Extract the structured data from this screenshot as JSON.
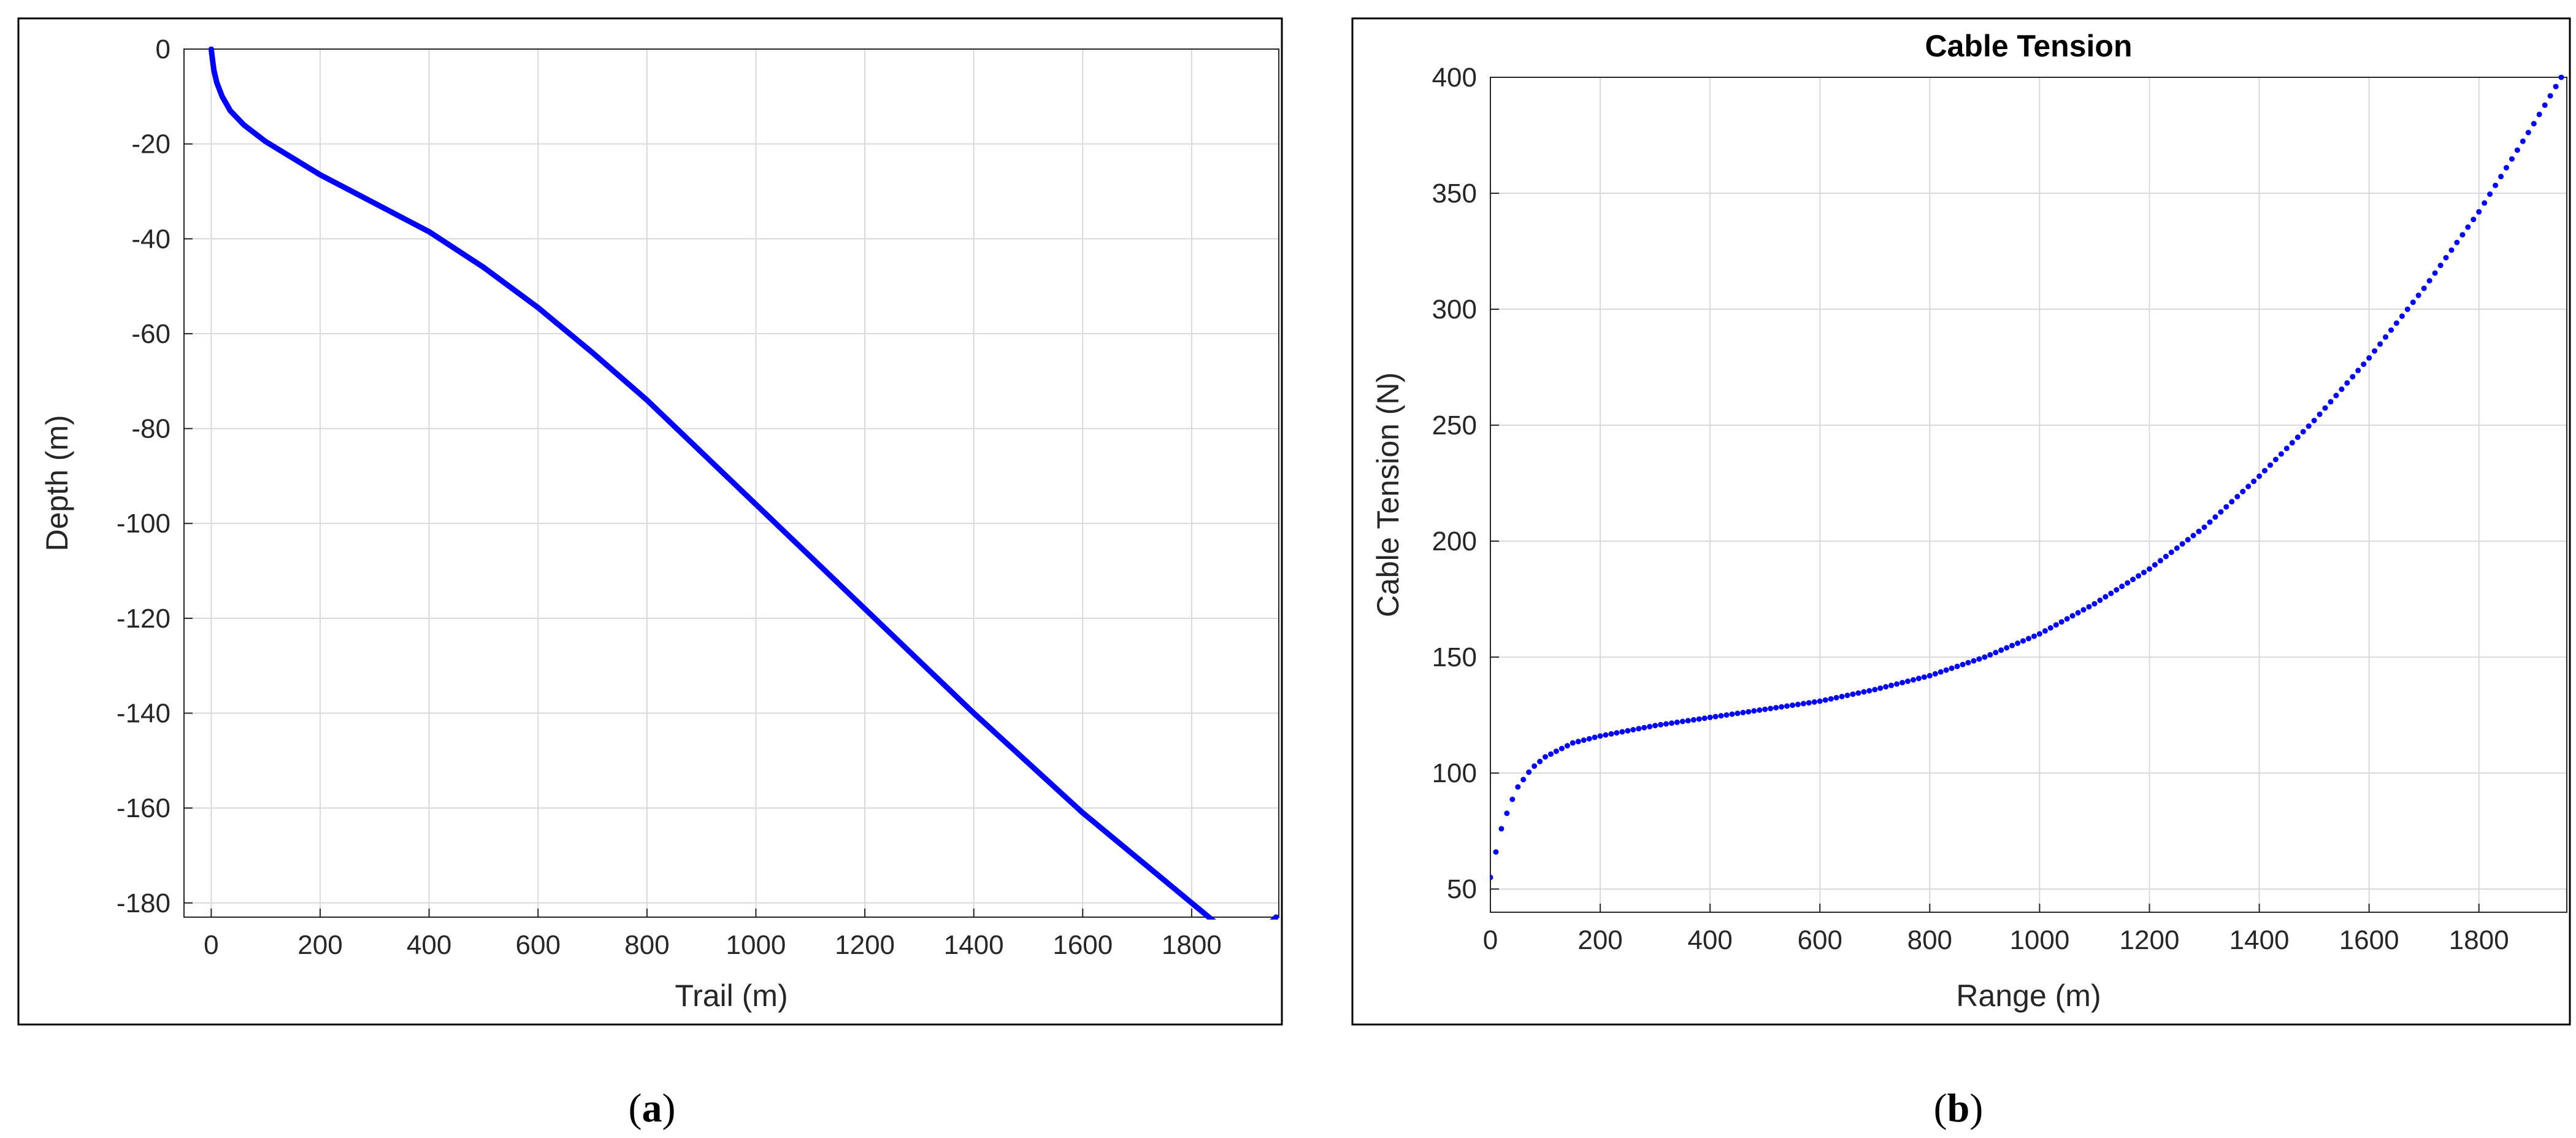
{
  "chart_data": [
    {
      "type": "line",
      "title": "",
      "xlabel": "Trail (m)",
      "ylabel": "Depth (m)",
      "xlim": [
        -50,
        1960
      ],
      "ylim": [
        -183,
        0
      ],
      "xticks": [
        0,
        200,
        400,
        600,
        800,
        1000,
        1200,
        1400,
        1600,
        1800
      ],
      "yticks": [
        0,
        -20,
        -40,
        -60,
        -80,
        -100,
        -120,
        -140,
        -160,
        -180
      ],
      "grid": true,
      "color": "#0000ff",
      "caption_letter": "a",
      "x": [
        0,
        2,
        5,
        10,
        20,
        35,
        60,
        100,
        150,
        200,
        300,
        400,
        500,
        600,
        700,
        800,
        900,
        1000,
        1100,
        1200,
        1300,
        1400,
        1500,
        1600,
        1700,
        1800,
        1900,
        1955
      ],
      "y": [
        0,
        -2,
        -4.5,
        -7,
        -10,
        -13,
        -16,
        -19.5,
        -23,
        -26.5,
        -32.5,
        -38.5,
        -46,
        -54.5,
        -64,
        -74,
        -85,
        -96,
        -107,
        -118,
        -129,
        -140,
        -150.5,
        -161,
        -170.5,
        -180,
        -189.5,
        -183
      ]
    },
    {
      "type": "scatter",
      "title": "Cable Tension",
      "xlabel": "Range (m)",
      "ylabel": "Cable Tension (N)",
      "xlim": [
        0,
        1960
      ],
      "ylim": [
        40,
        400
      ],
      "xticks": [
        0,
        200,
        400,
        600,
        800,
        1000,
        1200,
        1400,
        1600,
        1800
      ],
      "yticks": [
        50,
        100,
        150,
        200,
        250,
        300,
        350,
        400
      ],
      "grid": true,
      "color": "#0000ff",
      "caption_letter": "b",
      "x": [
        0,
        10,
        20,
        35,
        50,
        75,
        100,
        150,
        200,
        300,
        400,
        500,
        600,
        700,
        800,
        900,
        1000,
        1100,
        1200,
        1300,
        1400,
        1500,
        1600,
        1700,
        1800,
        1900,
        1950
      ],
      "y": [
        55,
        66,
        76,
        86,
        94,
        102,
        107,
        113,
        116,
        120.5,
        124,
        127.5,
        131,
        136,
        142,
        150,
        160,
        173,
        188,
        206,
        228,
        252,
        279,
        309,
        342,
        380,
        400
      ]
    }
  ]
}
